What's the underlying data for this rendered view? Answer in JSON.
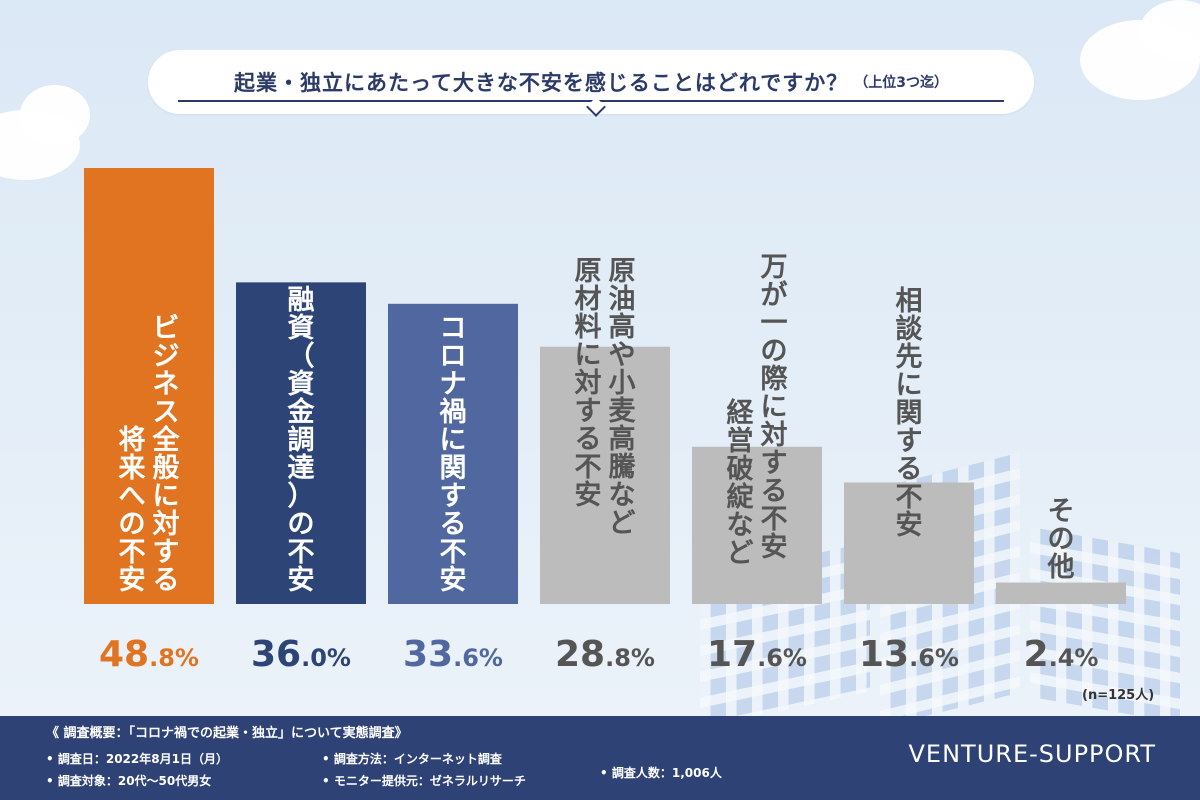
{
  "title": {
    "main": "起業・独立にあたって大きな不安を感じることはどれですか？",
    "sub": "（上位3つ迄）"
  },
  "colors": {
    "highlight": "#e07420",
    "navy": "#2d4476",
    "blue": "#50689f",
    "gray": "#bcbcbc",
    "footer": "#2e4275"
  },
  "chart_data": {
    "type": "bar",
    "categories": [
      "ビジネス全般に対する将来への不安",
      "融資（資金調達）の不安",
      "コロナ禍に関する不安",
      "原油高や小麦高騰など原材料に対する不安",
      "万が一の際に対する不安経営破綻など",
      "相談先に関する不安",
      "その他"
    ],
    "category_lines": [
      [
        "ビジネス全般に対する",
        "将来への不安"
      ],
      [
        "融資（資金調達）の不安"
      ],
      [
        "コロナ禍に関する不安"
      ],
      [
        "原油高や小麦高騰など",
        "原材料に対する不安"
      ],
      [
        "万が一の際に対する不安",
        "経営破綻など"
      ],
      [
        "相談先に関する不安"
      ],
      [
        "その他"
      ]
    ],
    "values": [
      48.8,
      36.0,
      33.6,
      28.8,
      17.6,
      13.6,
      2.4
    ],
    "value_labels": [
      "48.8%",
      "36.0%",
      "33.6%",
      "28.8%",
      "17.6%",
      "13.6%",
      "2.4%"
    ],
    "bar_colors": [
      "#e07420",
      "#2d4476",
      "#50689f",
      "#bcbcbc",
      "#bcbcbc",
      "#bcbcbc",
      "#bcbcbc"
    ],
    "label_colors": [
      "#e07420",
      "#2d4476",
      "#50689f",
      "#555555",
      "#555555",
      "#555555",
      "#555555"
    ],
    "ylim": [
      0,
      48.8
    ],
    "grid": false,
    "legend": "none"
  },
  "note": "(n=125人)",
  "footer": {
    "heading": "《 調査概要：「コロナ禍での起業・独立」について実態調査》",
    "items": [
      "調査日：2022年8月1日（月）",
      "調査対象：20代〜50代男女",
      "調査方法：インターネット調査",
      "モニター提供元：ゼネラルリサーチ",
      "調査人数：1,006人"
    ],
    "brand": "VENTURE-SUPPORT"
  }
}
